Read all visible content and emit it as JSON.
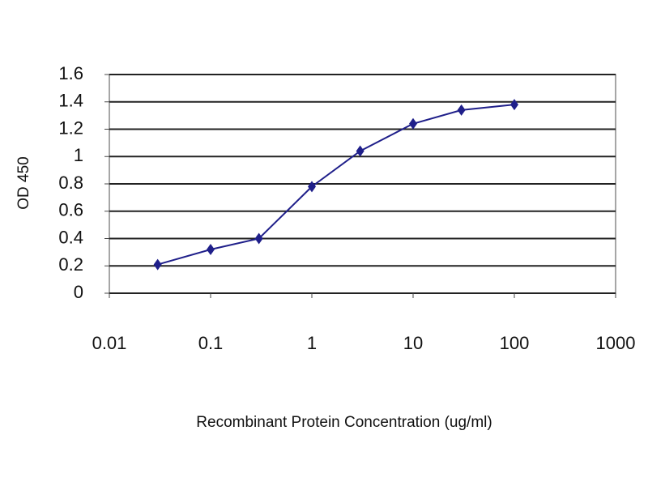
{
  "chart_data": {
    "type": "line",
    "xlabel": "Recombinant Protein Concentration (ug/ml)",
    "ylabel": "OD 450",
    "x": [
      0.03,
      0.1,
      0.3,
      1,
      3,
      10,
      30,
      100
    ],
    "values": [
      0.21,
      0.32,
      0.4,
      0.78,
      1.04,
      1.24,
      1.34,
      1.38
    ],
    "color": "#1f1f8a",
    "xscale": "log",
    "xlim": [
      0.01,
      1000
    ],
    "xticks": [
      0.01,
      0.1,
      1,
      10,
      100,
      1000
    ],
    "ylim": [
      0,
      1.6
    ],
    "yticks": [
      0,
      0.2,
      0.4,
      0.6,
      0.8,
      1,
      1.2,
      1.4,
      1.6
    ],
    "grid": true
  }
}
